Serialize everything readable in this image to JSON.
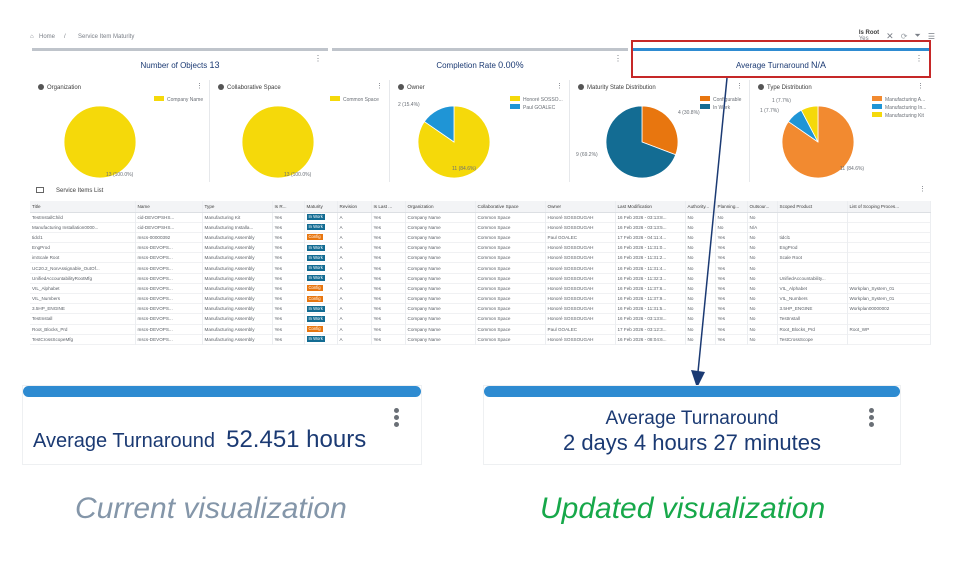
{
  "breadcrumb": {
    "home": "Home",
    "separator": "/",
    "page": "Service Item Maturity"
  },
  "toolbar": {
    "is_root_label": "Is Root",
    "is_root_sub": "Yes",
    "icons": [
      "close-icon",
      "refresh-icon",
      "filter-icon",
      "menu-icon"
    ]
  },
  "kpis": [
    {
      "label": "Number of Objects",
      "value": "13"
    },
    {
      "label": "Completion Rate",
      "value": "0.00%"
    },
    {
      "label": "Average Turnaround",
      "value": "N/A"
    }
  ],
  "charts": [
    {
      "title": "Organization",
      "legend": [
        "Company Name"
      ],
      "colors": [
        "#f5d90a"
      ],
      "values": [
        13
      ],
      "labels": [
        "13 (100.0%)"
      ]
    },
    {
      "title": "Collaborative Space",
      "legend": [
        "Common Space"
      ],
      "colors": [
        "#f5d90a"
      ],
      "values": [
        13
      ],
      "labels": [
        "13 (100.0%)"
      ]
    },
    {
      "title": "Owner",
      "legend": [
        "Honoré SOSSO...",
        "Paul GOALEC"
      ],
      "colors": [
        "#f5d90a",
        "#1f95d6"
      ],
      "values": [
        11,
        2
      ],
      "labels": [
        "11 (84.6%)",
        "2 (15.4%)"
      ]
    },
    {
      "title": "Maturity State Distribution",
      "legend": [
        "Configurable",
        "In Work"
      ],
      "colors": [
        "#e8760f",
        "#136c93"
      ],
      "values": [
        4,
        9
      ],
      "labels": [
        "4 (30.8%)",
        "9 (69.2%)"
      ]
    },
    {
      "title": "Type Distribution",
      "legend": [
        "Manufacturing A...",
        "Manufacturing In...",
        "Manufacturing Kit"
      ],
      "colors": [
        "#f28a30",
        "#1f95d6",
        "#f5d90a"
      ],
      "values": [
        11,
        1,
        1
      ],
      "labels": [
        "11 (84.6%)",
        "1 (7.7%)",
        "1 (7.7%)"
      ]
    }
  ],
  "table": {
    "title": "Service Items List",
    "columns": [
      "Title",
      "Name",
      "Type",
      "Is R...",
      "Maturity",
      "Revision",
      "Is Last ...",
      "Organization",
      "Collaborative Space",
      "Owner",
      "Last Modification",
      "Authority...",
      "Planning...",
      "Outsour...",
      "Scoped Product",
      "List of Scoping Proces..."
    ],
    "rows": [
      [
        "TestInstallChild",
        "cid-DEVOPSHS...",
        "Manufacturing Kit",
        "Yes",
        "In Work",
        "A",
        "Yes",
        "Company Name",
        "Common Space",
        "Honoré SOSSOUGAH",
        "16 Feb 2026 - 03:13:8...",
        "No",
        "No",
        "No",
        "",
        ""
      ],
      [
        "Manufacturing Installation0000...",
        "cid-DEVOPSHS...",
        "Manufacturing Installa...",
        "Yes",
        "In Work",
        "A",
        "Yes",
        "Company Name",
        "Common Space",
        "Honoré SOSSOUGAH",
        "16 Feb 2026 - 03:13:5...",
        "No",
        "No",
        "N/A",
        "",
        ""
      ],
      [
        "tidcl1",
        "mscs-00000392",
        "Manufacturing Assembly",
        "Yes",
        "Config",
        "A",
        "Yes",
        "Company Name",
        "Common Space",
        "Paul GOALEC",
        "17 Feb 2026 - 04:11:4...",
        "No",
        "Yes",
        "No",
        "tidcl1",
        ""
      ],
      [
        "EngProd",
        "mscs-DEVOPS...",
        "Manufacturing Assembly",
        "Yes",
        "In Work",
        "A",
        "Yes",
        "Company Name",
        "Common Space",
        "Honoré SOSSOUGAH",
        "16 Feb 2026 - 11:31:0...",
        "No",
        "Yes",
        "No",
        "EngProd",
        ""
      ],
      [
        "imScale Root",
        "mscs-DEVOPS...",
        "Manufacturing Assembly",
        "Yes",
        "In Work",
        "A",
        "Yes",
        "Company Name",
        "Common Space",
        "Honoré SOSSOUGAH",
        "16 Feb 2026 - 11:31:2...",
        "No",
        "Yes",
        "No",
        "Scale Root",
        ""
      ],
      [
        "UC20.2_NonAssignable_OutOf...",
        "mscs-DEVOPS...",
        "Manufacturing Assembly",
        "Yes",
        "In Work",
        "A",
        "Yes",
        "Company Name",
        "Common Space",
        "Honoré SOSSOUGAH",
        "16 Feb 2026 - 11:31:4...",
        "No",
        "Yes",
        "No",
        "",
        ""
      ],
      [
        "UnifiedAccountabilityRootMfg",
        "mscs-DEVOPS...",
        "Manufacturing Assembly",
        "Yes",
        "In Work",
        "A",
        "Yes",
        "Company Name",
        "Common Space",
        "Honoré SOSSOUGAH",
        "16 Feb 2026 - 11:32:3...",
        "No",
        "Yes",
        "No",
        "UnifiedAccountability...",
        ""
      ],
      [
        "VIL_Alphabet",
        "mscs-DEVOPS...",
        "Manufacturing Assembly",
        "Yes",
        "Config",
        "A",
        "Yes",
        "Company Name",
        "Common Space",
        "Honoré SOSSOUGAH",
        "16 Feb 2026 - 11:37:6...",
        "No",
        "Yes",
        "No",
        "VIL_Alphabet",
        "Workplan_System_01"
      ],
      [
        "VIL_Numbers",
        "mscs-DEVOPS...",
        "Manufacturing Assembly",
        "Yes",
        "Config",
        "A",
        "Yes",
        "Company Name",
        "Common Space",
        "Honoré SOSSOUGAH",
        "16 Feb 2026 - 11:37:9...",
        "No",
        "Yes",
        "No",
        "VIL_Numbers",
        "Workplan_System_01"
      ],
      [
        "3.5HP_ENGINE",
        "mscs-DEVOPS...",
        "Manufacturing Assembly",
        "Yes",
        "In Work",
        "A",
        "Yes",
        "Company Name",
        "Common Space",
        "Honoré SOSSOUGAH",
        "16 Feb 2026 - 11:31:5...",
        "No",
        "Yes",
        "No",
        "3.5HP_ENGINE",
        "Workplan00000002"
      ],
      [
        "TestInstall",
        "mscs-DEVOPS...",
        "Manufacturing Assembly",
        "Yes",
        "In Work",
        "A",
        "Yes",
        "Company Name",
        "Common Space",
        "Honoré SOSSOUGAH",
        "16 Feb 2026 - 03:13:8...",
        "No",
        "Yes",
        "No",
        "TestInstall",
        ""
      ],
      [
        "Root_Blocks_Prd",
        "mscs-DEVOPS...",
        "Manufacturing Assembly",
        "Yes",
        "Config",
        "A",
        "Yes",
        "Company Name",
        "Common Space",
        "Paul GOALEC",
        "17 Feb 2026 - 03:12:3...",
        "No",
        "Yes",
        "No",
        "Root_Blocks_Prd",
        "Root_WP"
      ],
      [
        "TestCrossScopeMfg",
        "mscs-DEVOPS...",
        "Manufacturing Assembly",
        "Yes",
        "In Work",
        "A",
        "Yes",
        "Company Name",
        "Common Space",
        "Honoré SOSSOUGAH",
        "16 Feb 2026 - 08:04:6...",
        "No",
        "Yes",
        "No",
        "TestCrossScope",
        ""
      ]
    ]
  },
  "current": {
    "label": "Average Turnaround",
    "value": "52.451 hours",
    "caption": "Current visualization"
  },
  "updated": {
    "label": "Average Turnaround",
    "value": "2 days 4 hours 27 minutes",
    "caption": "Updated visualization"
  },
  "colors": {
    "accent": "#2e8bd1",
    "navy": "#1b3a73",
    "highlight": "#c62828",
    "caption_current": "#8496a9",
    "caption_updated": "#17a84a",
    "in_work": "#136c93",
    "configurable": "#e8760f"
  }
}
